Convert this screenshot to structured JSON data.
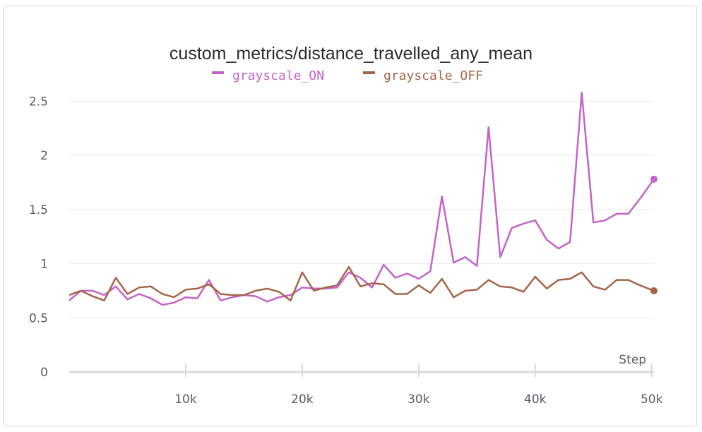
{
  "chart_data": {
    "type": "line",
    "title": "custom_metrics/distance_travelled_any_mean",
    "xlabel": "Step",
    "ylabel": "",
    "xlim": [
      0,
      50200
    ],
    "ylim": [
      0,
      2.6
    ],
    "x_ticks": [
      {
        "value": 10000,
        "label": "10k"
      },
      {
        "value": 20000,
        "label": "20k"
      },
      {
        "value": 30000,
        "label": "30k"
      },
      {
        "value": 40000,
        "label": "40k"
      },
      {
        "value": 50000,
        "label": "50k"
      }
    ],
    "y_ticks": [
      {
        "value": 0,
        "label": "0"
      },
      {
        "value": 0.5,
        "label": "0.5"
      },
      {
        "value": 1,
        "label": "1"
      },
      {
        "value": 1.5,
        "label": "1.5"
      },
      {
        "value": 2,
        "label": "2"
      },
      {
        "value": 2.5,
        "label": "2.5"
      }
    ],
    "grid": true,
    "legend_position": "top-center",
    "x": [
      0,
      1000,
      2000,
      3000,
      4000,
      5000,
      6000,
      7000,
      8000,
      9000,
      10000,
      11000,
      12000,
      13000,
      14000,
      15000,
      16000,
      17000,
      18000,
      19000,
      20000,
      21000,
      22000,
      23000,
      24000,
      25000,
      26000,
      27000,
      28000,
      29000,
      30000,
      31000,
      32000,
      33000,
      34000,
      35000,
      36000,
      37000,
      38000,
      39000,
      40000,
      41000,
      42000,
      43000,
      44000,
      45000,
      46000,
      47000,
      48000,
      49000,
      50200
    ],
    "series": [
      {
        "name": "grayscale_ON",
        "color": "#c463c9",
        "values": [
          0.66,
          0.75,
          0.75,
          0.71,
          0.79,
          0.67,
          0.72,
          0.68,
          0.62,
          0.64,
          0.69,
          0.68,
          0.85,
          0.66,
          0.69,
          0.71,
          0.7,
          0.65,
          0.69,
          0.71,
          0.78,
          0.77,
          0.77,
          0.78,
          0.92,
          0.87,
          0.78,
          0.99,
          0.87,
          0.91,
          0.86,
          0.93,
          1.62,
          1.01,
          1.06,
          0.98,
          2.26,
          1.06,
          1.33,
          1.37,
          1.4,
          1.22,
          1.14,
          1.2,
          2.58,
          1.38,
          1.4,
          1.46,
          1.46,
          1.6,
          1.78
        ]
      },
      {
        "name": "grayscale_OFF",
        "color": "#a5654a",
        "values": [
          0.71,
          0.75,
          0.7,
          0.66,
          0.87,
          0.72,
          0.78,
          0.79,
          0.72,
          0.69,
          0.76,
          0.77,
          0.81,
          0.72,
          0.71,
          0.71,
          0.75,
          0.77,
          0.74,
          0.66,
          0.92,
          0.75,
          0.78,
          0.8,
          0.97,
          0.79,
          0.82,
          0.81,
          0.72,
          0.72,
          0.8,
          0.73,
          0.86,
          0.69,
          0.75,
          0.76,
          0.85,
          0.79,
          0.78,
          0.74,
          0.88,
          0.77,
          0.85,
          0.86,
          0.92,
          0.79,
          0.76,
          0.85,
          0.85,
          0.8,
          0.75
        ]
      }
    ]
  }
}
